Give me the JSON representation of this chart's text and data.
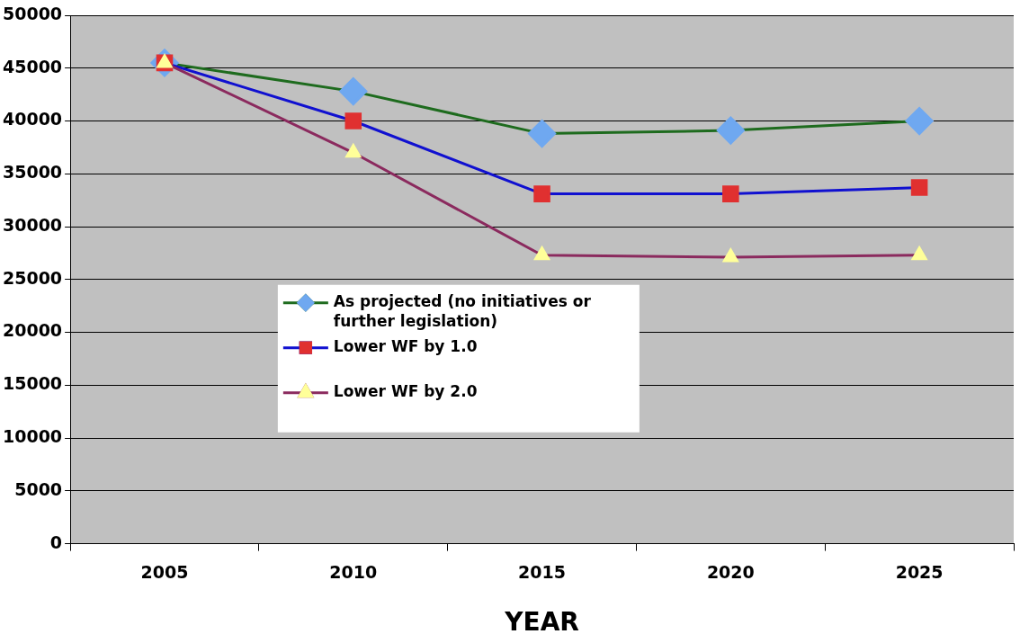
{
  "chart_data": {
    "type": "line",
    "xlabel": "YEAR",
    "categories": [
      "2005",
      "2010",
      "2015",
      "2020",
      "2025"
    ],
    "series": [
      {
        "name": "As projected (no initiatives or further legislation)",
        "color": "#1e6b1e",
        "colors": [
          "#6fa8f0",
          "#6fa8f0",
          "#6fa8f0",
          "#6fa8f0",
          "#6fa8f0"
        ],
        "marker": "diamond",
        "values": [
          45500,
          42800,
          38800,
          39100,
          40000
        ]
      },
      {
        "name": "Lower WF by 1.0",
        "color": "#1010d0",
        "colors": [
          "#e03030",
          "#e03030",
          "#e03030",
          "#e03030",
          "#e03030"
        ],
        "marker": "square",
        "values": [
          45500,
          40000,
          33100,
          33100,
          33700
        ]
      },
      {
        "name": "Lower WF by 2.0",
        "color": "#8b2a5e",
        "colors": [
          "#ffff99",
          "#ffff99",
          "#ffff99",
          "#ffff99",
          "#ffff99"
        ],
        "marker": "triangle",
        "values": [
          45500,
          37000,
          27300,
          27100,
          27300
        ]
      }
    ],
    "ylim": [
      0,
      50000
    ],
    "yticks": [
      0,
      5000,
      10000,
      15000,
      20000,
      25000,
      30000,
      35000,
      40000,
      45000,
      50000
    ],
    "grid": "y",
    "legend": "center",
    "line_style": "solid"
  }
}
